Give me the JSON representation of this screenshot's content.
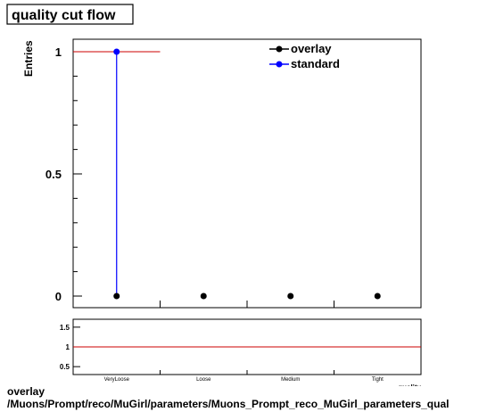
{
  "chart_data": {
    "type": "scatter",
    "title": "quality cut flow",
    "ylabel": "Entries",
    "xlabel": "quality",
    "categories": [
      "VeryLoose",
      "Loose",
      "Medium",
      "Tight"
    ],
    "ylim": [
      0,
      1.05
    ],
    "yticks": [
      0,
      0.5,
      1
    ],
    "ytick_labels": [
      "0",
      "0.5",
      "1"
    ],
    "series": [
      {
        "name": "overlay",
        "color": "#000000",
        "values": [
          0,
          0,
          0,
          0
        ]
      },
      {
        "name": "standard",
        "color": "#0000ff",
        "values": [
          1,
          0,
          0,
          0
        ]
      }
    ],
    "ratio_panel": {
      "ylim": [
        0.3,
        1.7
      ],
      "yticks": [
        0.5,
        1,
        1.5
      ],
      "ytick_labels": [
        "0.5",
        "1",
        "1.5"
      ],
      "reference_line": 1,
      "reference_color": "#cc0000"
    },
    "legend_position": "top-right",
    "grid": false
  },
  "footer": {
    "line1": "overlay",
    "line2": "/Muons/Prompt/reco/MuGirl/parameters/Muons_Prompt_reco_MuGirl_parameters_qual"
  }
}
